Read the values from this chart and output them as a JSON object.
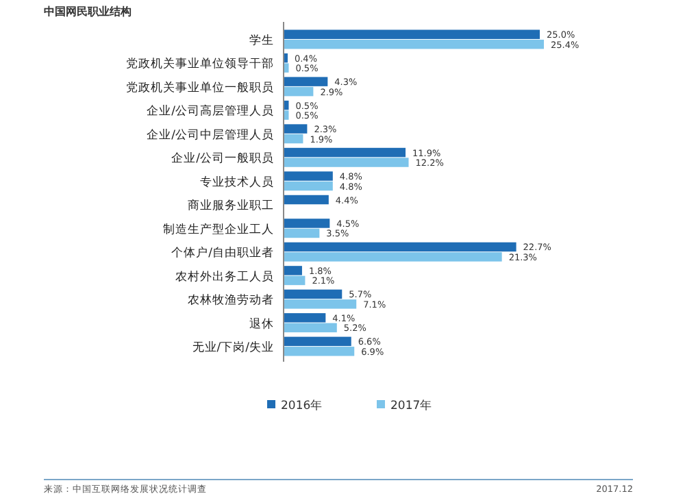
{
  "chart_data": {
    "type": "bar",
    "orientation": "horizontal",
    "title": "中国网民职业结构",
    "categories": [
      "学生",
      "党政机关事业单位领导干部",
      "党政机关事业单位一般职员",
      "企业/公司高层管理人员",
      "企业/公司中层管理人员",
      "企业/公司一般职员",
      "专业技术人员",
      "商业服务业职工",
      "制造生产型企业工人",
      "个体户/自由职业者",
      "农村外出务工人员",
      "农林牧渔劳动者",
      "退休",
      "无业/下岗/失业"
    ],
    "series": [
      {
        "name": "2016年",
        "color": "#1f6db5",
        "values": [
          25.0,
          0.4,
          4.3,
          0.5,
          2.3,
          11.9,
          4.8,
          4.4,
          4.5,
          22.7,
          1.8,
          5.7,
          4.1,
          6.6
        ],
        "value_labels": [
          "25.0%",
          "0.4%",
          "4.3%",
          "0.5%",
          "2.3%",
          "11.9%",
          "4.8%",
          "4.4%",
          "4.5%",
          "22.7%",
          "1.8%",
          "5.7%",
          "4.1%",
          "6.6%"
        ]
      },
      {
        "name": "2017年",
        "color": "#7cc4ea",
        "values": [
          25.4,
          0.5,
          2.9,
          0.5,
          1.9,
          12.2,
          4.8,
          null,
          3.5,
          21.3,
          2.1,
          7.1,
          5.2,
          6.9
        ],
        "value_labels": [
          "25.4%",
          "0.5%",
          "2.9%",
          "0.5%",
          "1.9%",
          "12.2%",
          "4.8%",
          null,
          "3.5%",
          "21.3%",
          "2.1%",
          "7.1%",
          "5.2%",
          "6.9%"
        ]
      }
    ],
    "legend": "bottom",
    "annotations": [
      "来源：中国互联网络发展状况统计调查",
      "2017.12"
    ]
  }
}
